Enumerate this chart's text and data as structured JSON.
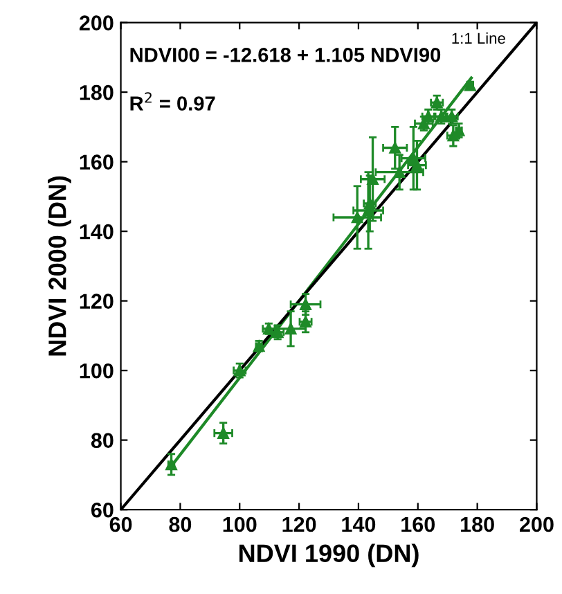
{
  "chart_data": {
    "type": "scatter",
    "xlabel": "NDVI 1990 (DN)",
    "ylabel": "NDVI 2000 (DN)",
    "xlim": [
      60,
      200
    ],
    "ylim": [
      60,
      200
    ],
    "xticks": [
      60,
      80,
      100,
      120,
      140,
      160,
      180,
      200
    ],
    "yticks": [
      60,
      80,
      100,
      120,
      140,
      160,
      180,
      200
    ],
    "grid": false,
    "legend": false,
    "annotations": [
      "NDVI00 = -12.618 + 1.105 NDVI90",
      "R$^{2}$ = 0.97",
      "1:1 Line"
    ],
    "series": [
      {
        "marker": "triangle",
        "color": "#1e8a28",
        "x": [
          77,
          94.5,
          100,
          106.5,
          109.8,
          112.8,
          117.2,
          122.2,
          122.2,
          139.6,
          143.3,
          143.8,
          144.8,
          152.3,
          153.8,
          158.5,
          159.7,
          162,
          163.5,
          166.4,
          167.9,
          171.4,
          171.9,
          173.8,
          177.6
        ],
        "values": [
          73,
          82,
          100,
          107,
          112,
          111,
          112,
          119,
          114,
          144,
          146,
          148,
          155,
          164,
          157,
          161,
          159,
          171,
          173,
          177,
          173,
          173,
          167.5,
          169,
          182
        ],
        "errors": [
          3,
          3,
          2,
          1.5,
          1.5,
          2,
          5,
          3,
          3,
          9,
          11,
          8,
          12,
          6,
          5,
          9,
          7,
          2,
          2,
          2,
          2,
          2,
          3,
          2,
          1
        ],
        "xerrors": [
          1,
          3,
          2,
          1,
          2,
          2,
          5,
          5,
          2,
          8,
          5,
          2,
          4,
          4,
          8,
          4,
          3,
          3,
          2,
          2,
          2,
          2,
          2,
          1,
          1
        ]
      },
      {
        "type": "line",
        "color": "#1e8a28",
        "x": [
          77,
          178
        ],
        "values": [
          72.5,
          184.1
        ]
      },
      {
        "type": "line",
        "color": "#000000",
        "x": [
          60,
          200
        ],
        "values": [
          60,
          200
        ]
      }
    ]
  }
}
